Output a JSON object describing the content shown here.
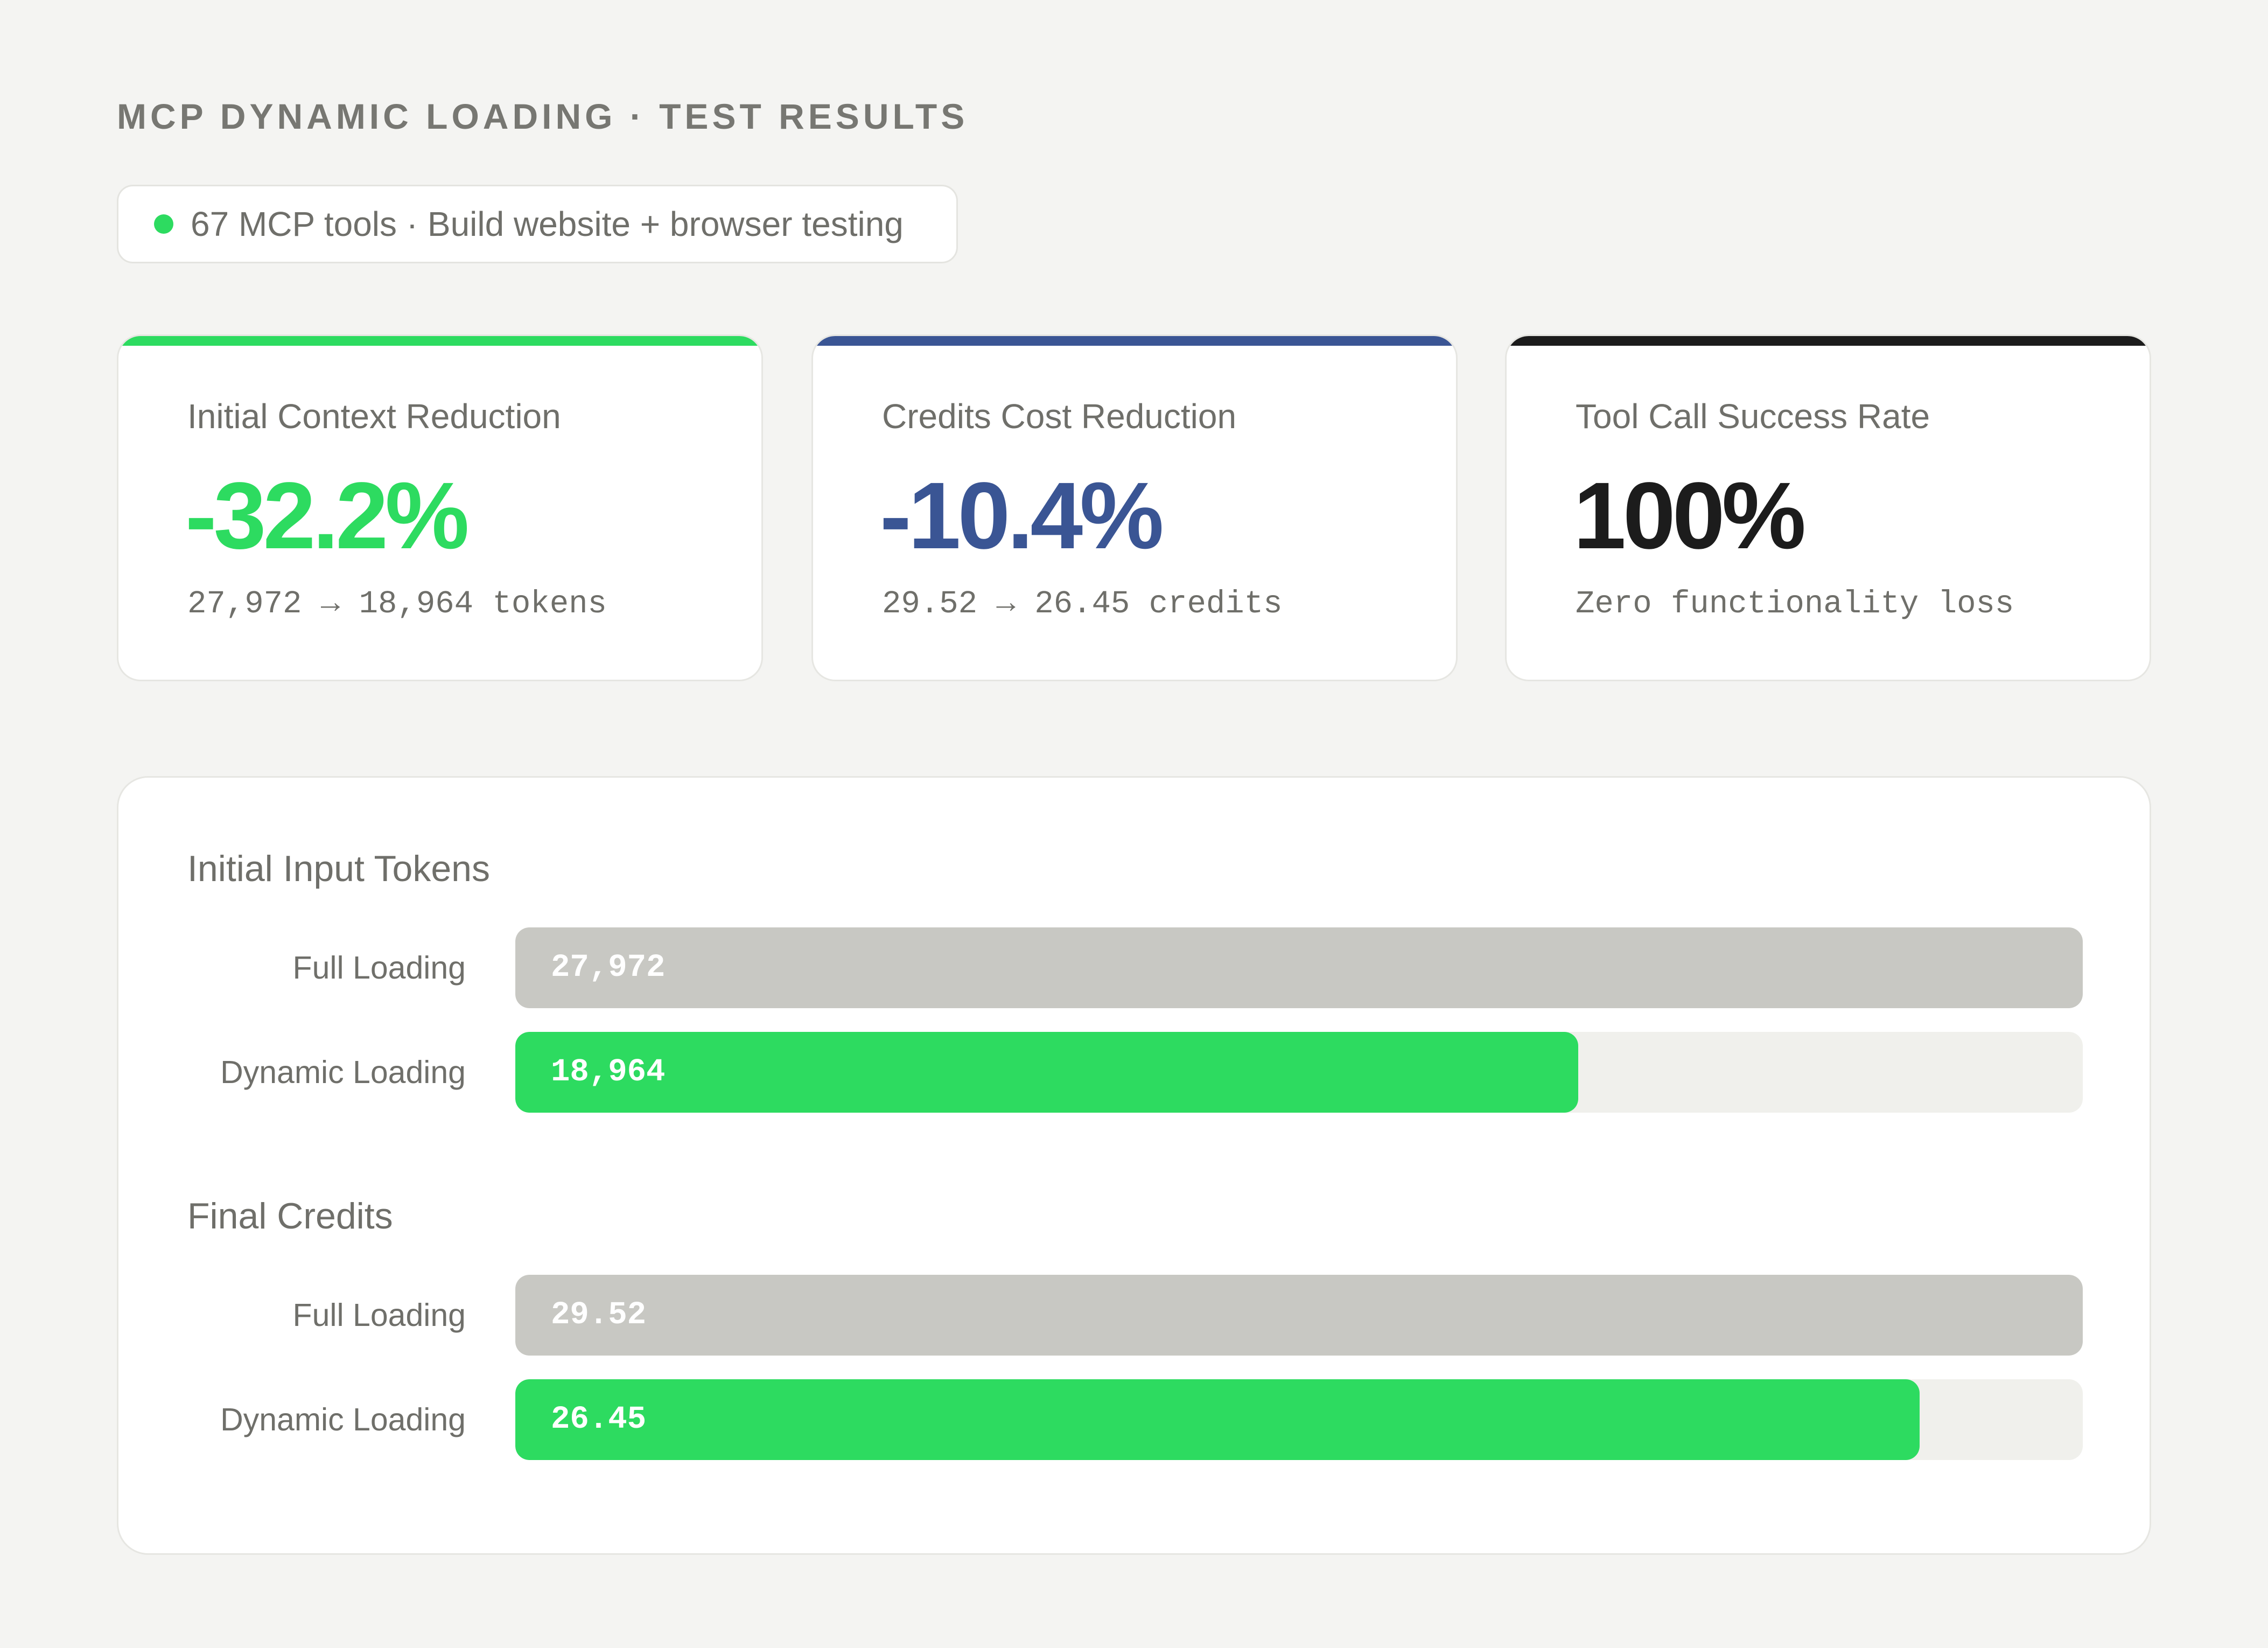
{
  "header": {
    "title": "MCP DYNAMIC LOADING · TEST RESULTS",
    "tag": "67 MCP tools · Build website + browser testing",
    "tag_dot_color": "#2ddb60"
  },
  "cards": [
    {
      "label": "Initial Context Reduction",
      "value": "-32.2%",
      "sub": "27,972 → 18,964 tokens",
      "accent": "#2ddb60",
      "value_color": "#2ddb60"
    },
    {
      "label": "Credits Cost Reduction",
      "value": "-10.4%",
      "sub": "29.52 → 26.45 credits",
      "accent": "#3a5594",
      "value_color": "#3a5594"
    },
    {
      "label": "Tool Call Success Rate",
      "value": "100%",
      "sub": "Zero functionality loss",
      "accent": "#1c1c1c",
      "value_color": "#1c1c1c"
    }
  ],
  "chart_data": [
    {
      "type": "bar",
      "orientation": "horizontal",
      "title": "Initial Input Tokens",
      "categories": [
        "Full Loading",
        "Dynamic Loading"
      ],
      "values": [
        27972,
        18964
      ],
      "value_labels": [
        "27,972",
        "18,964"
      ],
      "colors": [
        "#c8c8c3",
        "#2ddb60"
      ],
      "xlim": [
        0,
        27972
      ]
    },
    {
      "type": "bar",
      "orientation": "horizontal",
      "title": "Final Credits",
      "categories": [
        "Full Loading",
        "Dynamic Loading"
      ],
      "values": [
        29.52,
        26.45
      ],
      "value_labels": [
        "29.52",
        "26.45"
      ],
      "colors": [
        "#c8c8c3",
        "#2ddb60"
      ],
      "xlim": [
        0,
        29.52
      ]
    }
  ]
}
